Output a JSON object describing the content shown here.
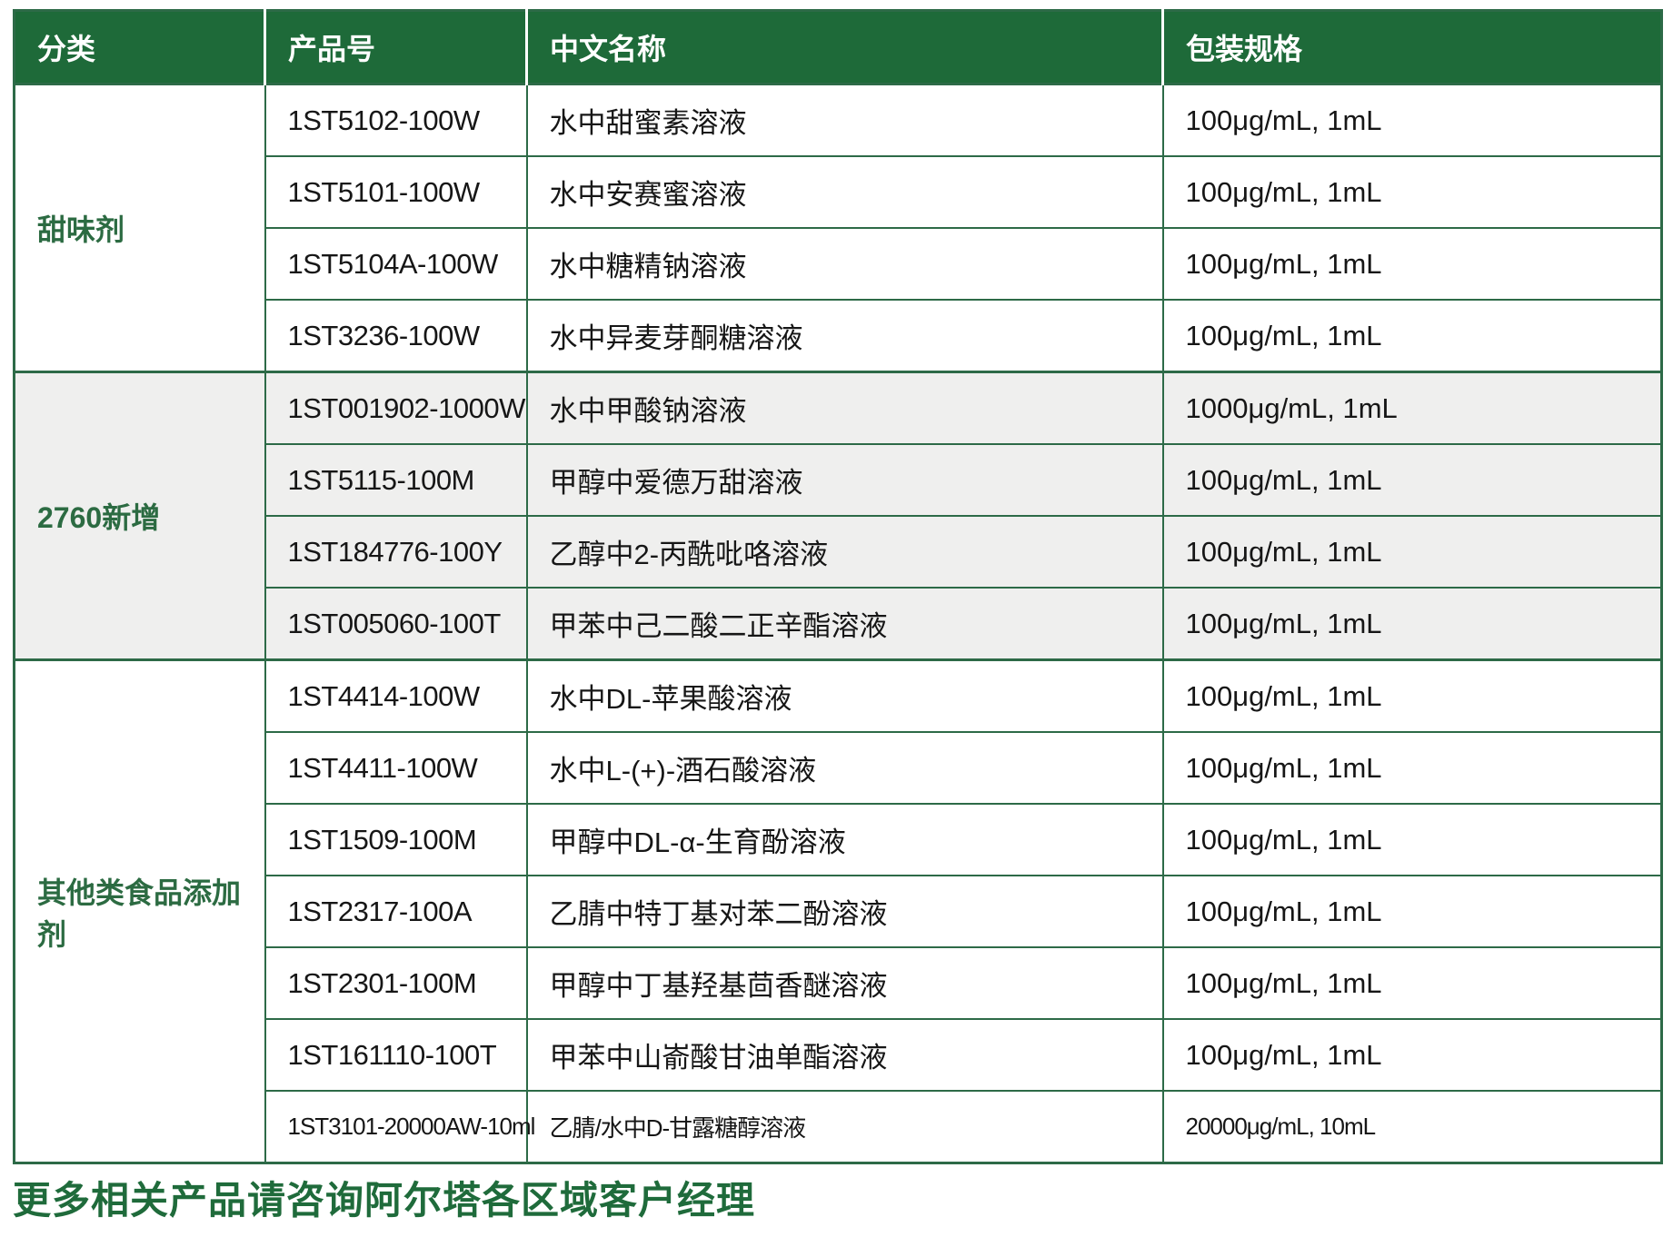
{
  "colors": {
    "header_bg": "#1E6A39",
    "header_text": "#FFFFFF",
    "grid_border": "#2D6A47",
    "group_label_green": "#2C6B42",
    "alt_group_bg": "#EFEFEE",
    "footer_green": "#1F6B3B"
  },
  "table": {
    "columns": [
      "分类",
      "产品号",
      "中文名称",
      "包装规格"
    ],
    "groups": [
      {
        "category": "甜味剂",
        "alt": false,
        "rows": [
          {
            "product": "1ST5102-100W",
            "name": "水中甜蜜素溶液",
            "spec": "100μg/mL, 1mL"
          },
          {
            "product": "1ST5101-100W",
            "name": "水中安赛蜜溶液",
            "spec": "100μg/mL, 1mL"
          },
          {
            "product": "1ST5104A-100W",
            "name": "水中糖精钠溶液",
            "spec": "100μg/mL, 1mL"
          },
          {
            "product": "1ST3236-100W",
            "name": "水中异麦芽酮糖溶液",
            "spec": "100μg/mL, 1mL"
          }
        ]
      },
      {
        "category": "2760新增",
        "alt": true,
        "rows": [
          {
            "product": "1ST001902-1000W",
            "name": "水中甲酸钠溶液",
            "spec": "1000μg/mL, 1mL"
          },
          {
            "product": "1ST5115-100M",
            "name": "甲醇中爱德万甜溶液",
            "spec": "100μg/mL, 1mL"
          },
          {
            "product": "1ST184776-100Y",
            "name": "乙醇中2-丙酰吡咯溶液",
            "spec": "100μg/mL, 1mL"
          },
          {
            "product": "1ST005060-100T",
            "name": "甲苯中己二酸二正辛酯溶液",
            "spec": "100μg/mL, 1mL"
          }
        ]
      },
      {
        "category": "其他类食品添加剂",
        "alt": false,
        "rows": [
          {
            "product": "1ST4414-100W",
            "name": "水中DL-苹果酸溶液",
            "spec": "100μg/mL, 1mL"
          },
          {
            "product": "1ST4411-100W",
            "name": "水中L-(+)-酒石酸溶液",
            "spec": "100μg/mL, 1mL"
          },
          {
            "product": "1ST1509-100M",
            "name": "甲醇中DL-α-生育酚溶液",
            "spec": "100μg/mL, 1mL"
          },
          {
            "product": "1ST2317-100A",
            "name": "乙腈中特丁基对苯二酚溶液",
            "spec": "100μg/mL, 1mL"
          },
          {
            "product": "1ST2301-100M",
            "name": "甲醇中丁基羟基茴香醚溶液",
            "spec": "100μg/mL, 1mL"
          },
          {
            "product": "1ST161110-100T",
            "name": "甲苯中山嵛酸甘油单酯溶液",
            "spec": "100μg/mL, 1mL"
          },
          {
            "product": "1ST3101-20000AW-10ml",
            "name": "乙腈/水中D-甘露糖醇溶液",
            "spec": "20000μg/mL, 10mL"
          }
        ]
      }
    ]
  },
  "footer": {
    "text": "更多相关产品请咨询阿尔塔各区域客户经理"
  }
}
